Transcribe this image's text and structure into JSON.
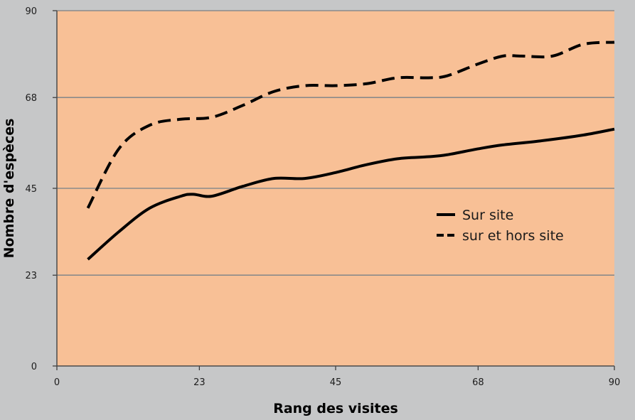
{
  "chart_data": {
    "type": "line",
    "xlabel": "Rang des visites",
    "ylabel": "Nombre d'espèces",
    "xlim": [
      0,
      90
    ],
    "ylim": [
      0,
      90
    ],
    "x_ticks": [
      "0",
      "23",
      "45",
      "68",
      "90"
    ],
    "y_ticks": [
      "0",
      "23",
      "45",
      "68",
      "90"
    ],
    "grid": "horizontal",
    "legend_position": "right",
    "background_color": "#f8c096",
    "series": [
      {
        "name": "Sur site",
        "style": "solid",
        "color": "#000000",
        "x": [
          5,
          10,
          15,
          20,
          22,
          25,
          30,
          35,
          40,
          45,
          50,
          55,
          60,
          63,
          68,
          72,
          78,
          85,
          90
        ],
        "y": [
          27,
          34,
          40,
          43,
          43.5,
          43,
          45.5,
          47.5,
          47.5,
          49,
          51,
          52.5,
          53,
          53.5,
          55,
          56,
          57,
          58.5,
          60
        ]
      },
      {
        "name": "sur et hors site",
        "style": "dashed",
        "color": "#000000",
        "x": [
          5,
          10,
          15,
          20,
          25,
          30,
          35,
          40,
          45,
          50,
          55,
          60,
          63,
          68,
          72,
          75,
          80,
          85,
          90
        ],
        "y": [
          40,
          55,
          61,
          62.5,
          63,
          66,
          69.5,
          71,
          71,
          71.5,
          73,
          73,
          73.5,
          76.5,
          78.5,
          78.5,
          78.5,
          81.5,
          82
        ]
      }
    ]
  }
}
